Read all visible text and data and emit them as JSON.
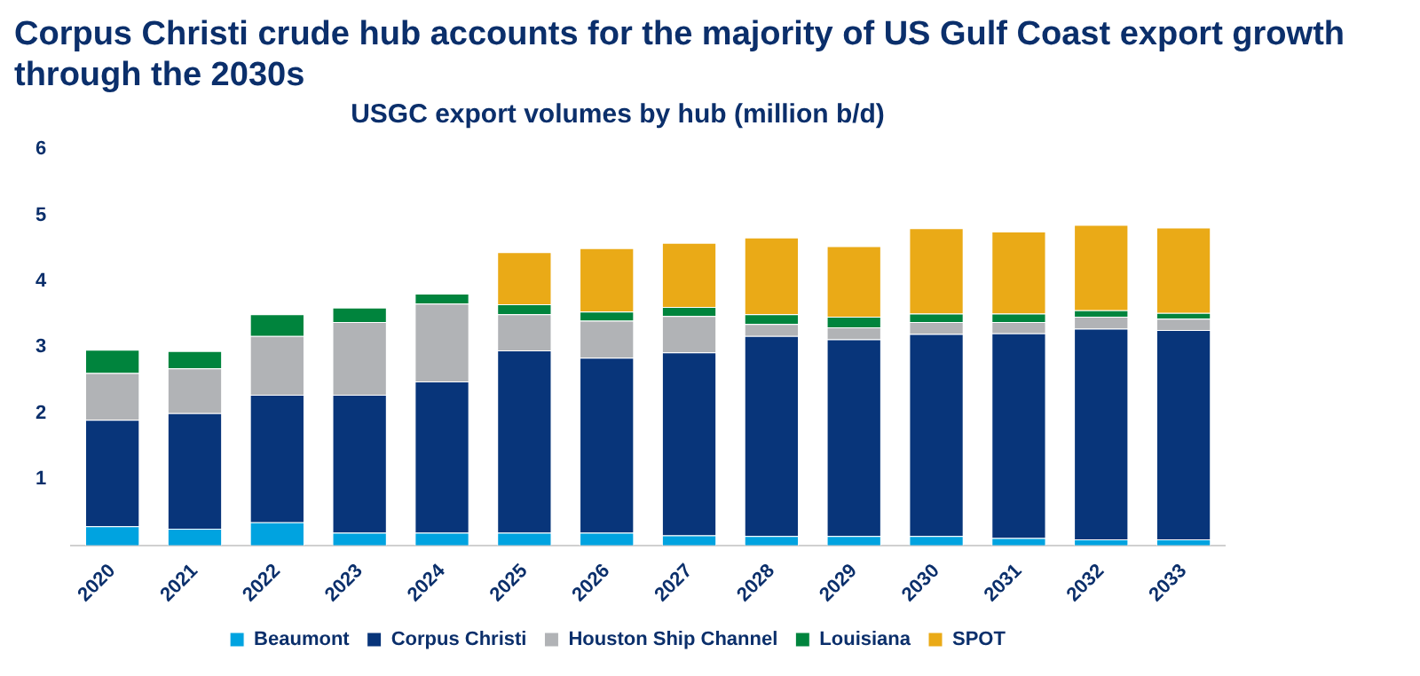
{
  "chart_data": {
    "type": "bar",
    "title": "Corpus Christi crude hub accounts for the majority of US Gulf Coast export growth through the 2030s",
    "subtitle": "USGC export volumes by hub (million b/d)",
    "categories": [
      "2020",
      "2021",
      "2022",
      "2023",
      "2024",
      "2025",
      "2026",
      "2027",
      "2028",
      "2029",
      "2030",
      "2031",
      "2032",
      "2033"
    ],
    "stacked": true,
    "series": [
      {
        "name": "Beaumont",
        "color": "#00a3e0",
        "values": [
          0.29,
          0.25,
          0.35,
          0.19,
          0.19,
          0.19,
          0.19,
          0.15,
          0.14,
          0.14,
          0.14,
          0.11,
          0.09,
          0.09
        ]
      },
      {
        "name": "Corpus Christi",
        "color": "#08357a",
        "values": [
          1.61,
          1.75,
          1.93,
          2.09,
          2.29,
          2.76,
          2.65,
          2.77,
          3.03,
          2.98,
          3.06,
          3.1,
          3.19,
          3.17
        ]
      },
      {
        "name": "Houston Ship Channel",
        "color": "#b1b3b6",
        "values": [
          0.71,
          0.68,
          0.89,
          1.1,
          1.18,
          0.55,
          0.56,
          0.55,
          0.18,
          0.18,
          0.18,
          0.17,
          0.18,
          0.17
        ]
      },
      {
        "name": "Louisiana",
        "color": "#00843d",
        "values": [
          0.35,
          0.26,
          0.33,
          0.22,
          0.15,
          0.15,
          0.14,
          0.14,
          0.15,
          0.16,
          0.13,
          0.13,
          0.1,
          0.09
        ]
      },
      {
        "name": "SPOT",
        "color": "#eaaa17",
        "values": [
          null,
          null,
          null,
          null,
          null,
          0.79,
          0.96,
          0.97,
          1.16,
          1.07,
          1.29,
          1.24,
          1.29,
          1.29
        ]
      }
    ],
    "ylim": [
      0,
      6
    ],
    "yticks": [
      1,
      2,
      3,
      4,
      5,
      6
    ],
    "grid": false,
    "legend": "bottom"
  }
}
